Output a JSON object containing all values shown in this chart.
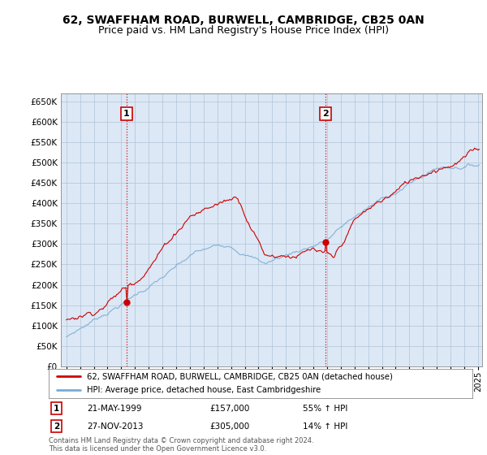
{
  "title": "62, SWAFFHAM ROAD, BURWELL, CAMBRIDGE, CB25 0AN",
  "subtitle": "Price paid vs. HM Land Registry's House Price Index (HPI)",
  "ylim": [
    0,
    670000
  ],
  "yticks": [
    0,
    50000,
    100000,
    150000,
    200000,
    250000,
    300000,
    350000,
    400000,
    450000,
    500000,
    550000,
    600000,
    650000
  ],
  "xlim_start": 1994.6,
  "xlim_end": 2025.3,
  "sale1_x": 1999.38,
  "sale1_y": 157000,
  "sale1_label": "1",
  "sale1_date": "21-MAY-1999",
  "sale1_price": "£157,000",
  "sale1_hpi": "55% ↑ HPI",
  "sale2_x": 2013.9,
  "sale2_y": 305000,
  "sale2_label": "2",
  "sale2_date": "27-NOV-2013",
  "sale2_price": "£305,000",
  "sale2_hpi": "14% ↑ HPI",
  "price_color": "#cc0000",
  "hpi_color": "#7aabd4",
  "vline_color": "#cc0000",
  "background_color": "#ffffff",
  "chart_bg": "#dce8f5",
  "grid_color": "#b0c4d8",
  "legend_label_price": "62, SWAFFHAM ROAD, BURWELL, CAMBRIDGE, CB25 0AN (detached house)",
  "legend_label_hpi": "HPI: Average price, detached house, East Cambridgeshire",
  "footer": "Contains HM Land Registry data © Crown copyright and database right 2024.\nThis data is licensed under the Open Government Licence v3.0.",
  "title_fontsize": 10,
  "subtitle_fontsize": 9
}
